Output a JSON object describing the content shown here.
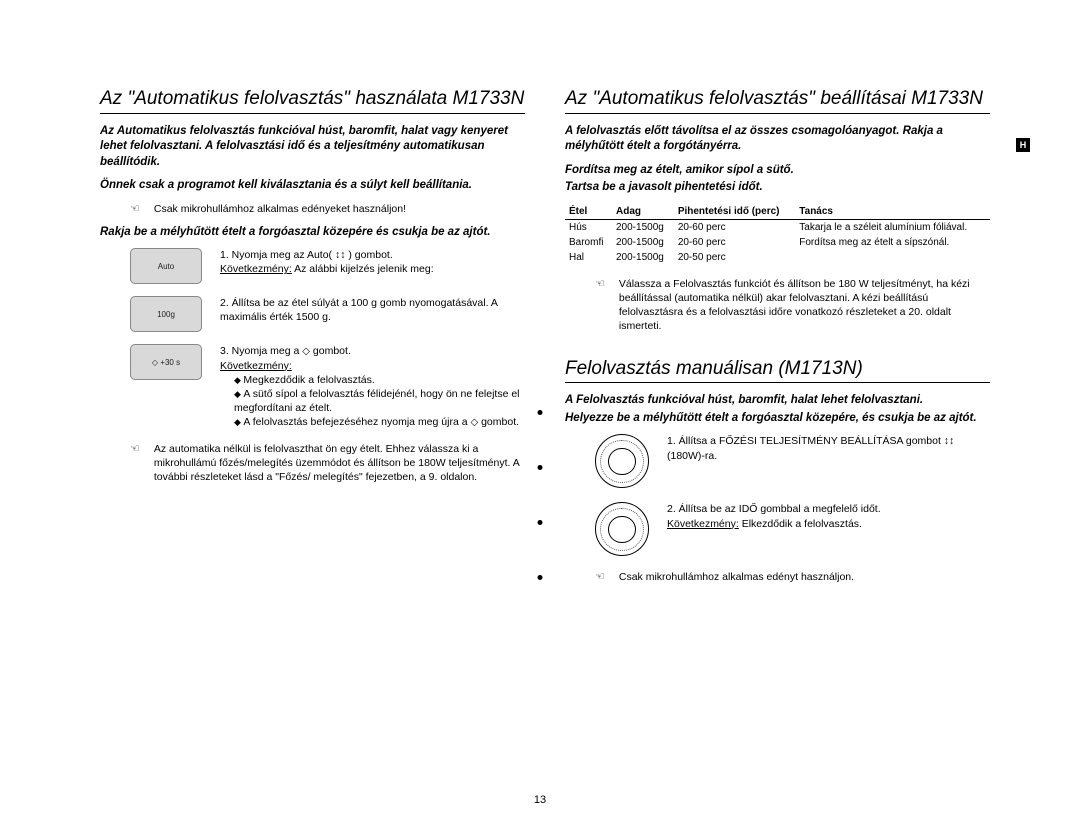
{
  "page_number": "13",
  "side_tab": "H",
  "left": {
    "heading": "Az \"Automatikus felolvasztás\" használata M1733N",
    "intro1": "Az Automatikus felolvasztás funkcióval húst, baromfit, halat vagy kenyeret lehet felolvasztani. A felolvasztási idő és a teljesítmény automatikusan beállítódik.",
    "intro2": "Önnek csak a programot kell kiválasztania és a súlyt kell beállítania.",
    "note1_sym": "☜",
    "note1": "Csak mikrohullámhoz alkalmas edényeket használjon!",
    "intro3": "Rakja be a mélyhűtött ételt a forgóasztal közepére és csukja be az ajtót.",
    "step1_icon": "Auto",
    "step1": "1.  Nyomja meg az Auto( ↕↕ ) gombot.",
    "step1_follow_label": "Következmény:",
    "step1_follow": "  Az alábbi kijelzés jelenik meg:",
    "step2_icon": "100g",
    "step2": "2.  Állítsa be az étel súlyát a 100 g gomb nyomogatásával. A maximális érték 1500 g.",
    "step3_icon": "◇ +30 s",
    "step3": "3.  Nyomja meg a",
    "step3_cont": "gombot.",
    "step3_follow_label": "Következmény:",
    "step3_b1": "Megkezdődik a felolvasztás.",
    "step3_b2": "A sütő sípol a felolvasztás félidejénél, hogy ön ne felejtse el megfordítani az ételt.",
    "step3_b3": "A felolvasztás befejezéséhez nyomja meg újra a",
    "step3_b3b": "gombot.",
    "note2_sym": "☜",
    "note2": "Az automatika nélkül is felolvaszthat ön egy ételt. Ehhez válassza ki a mikrohullámú főzés/melegítés üzemmódot és állítson be 180W teljesítményt. A további részleteket lásd a \"Főzés/ melegítés\" fejezetben, a 9. oldalon."
  },
  "right_top": {
    "heading": "Az \"Automatikus felolvasztás\" beállításai M1733N",
    "intro1": "A felolvasztás előtt távolítsa el az összes csomagolóanyagot. Rakja a mélyhűtött ételt a forgótányérra.",
    "intro2": "Fordítsa meg az ételt, amikor sípol a sütő.",
    "intro3": "Tartsa be a javasolt pihentetési időt.",
    "table_head": [
      "Étel",
      "Adag",
      "Pihentetési idő (perc)",
      "Tanács"
    ],
    "rows": [
      [
        "Hús",
        "200-1500g",
        "20-60 perc",
        "Takarja le a széleit alumínium fóliával."
      ],
      [
        "Baromfi",
        "200-1500g",
        "20-60 perc",
        "Fordítsa meg az ételt a sípszónál."
      ],
      [
        "Hal",
        "200-1500g",
        "20-50 perc",
        ""
      ]
    ],
    "note_sym": "☜",
    "note": "Válassza a Felolvasztás funkciót és állítson be 180 W teljesítményt, ha kézi beállítással (automatika nélkül) akar felolvasztani. A kézi beállítású felolvasztásra és a felolvasztási időre vonatkozó részleteket a 20. oldalt ismerteti."
  },
  "right_bottom": {
    "heading": "Felolvasztás manuálisan (M1713N)",
    "intro1": "A Felolvasztás funkcióval húst, baromfit, halat lehet felolvasztani.",
    "intro2": "Helyezze be a mélyhűtött ételt a forgóasztal közepére, és csukja be az ajtót.",
    "step1": "1.  Állítsa a FŐZÉSI TELJESÍTMÉNY BEÁLLÍTÁSA gombot ↕↕ (180W)-ra.",
    "step2": "2.  Állítsa be az IDŐ gombbal a megfelelő időt.",
    "step2_follow_label": "Következmény:",
    "step2_follow": "  Elkezdődik a felolvasztás.",
    "note_sym": "☜",
    "note": "Csak mikrohullámhoz alkalmas edényt használjon."
  }
}
